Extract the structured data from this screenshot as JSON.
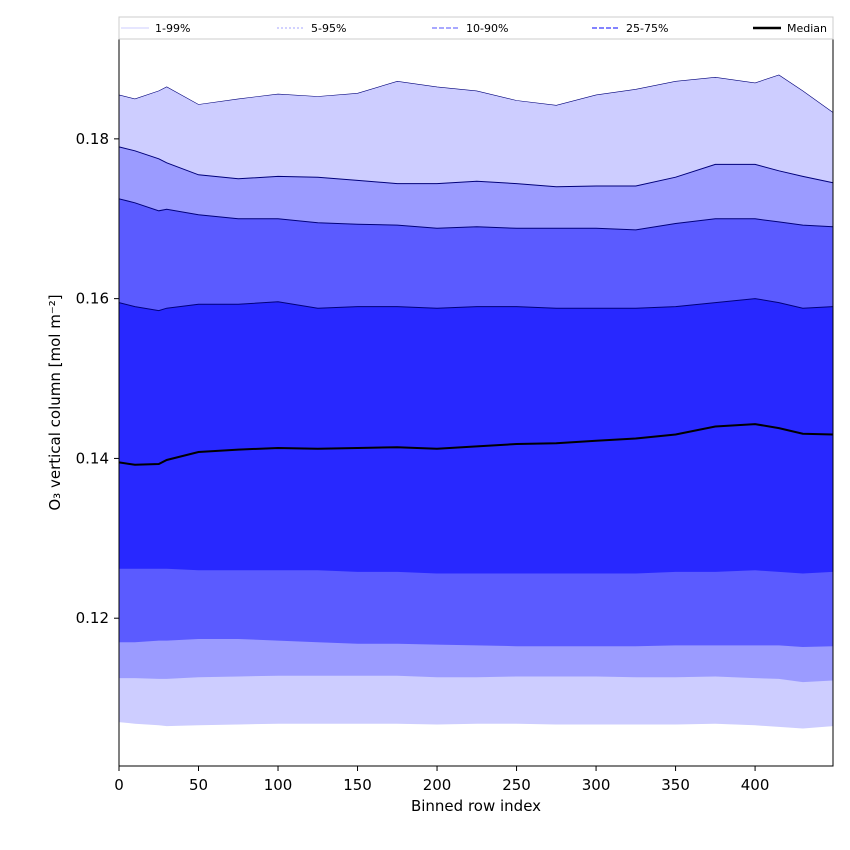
{
  "chart_data": {
    "type": "area",
    "xlabel": "Binned row index",
    "ylabel": "O₃ vertical column [mol m⁻²]",
    "xlim": [
      0,
      449
    ],
    "ylim": [
      0.1015,
      0.1925
    ],
    "xticks": [
      0,
      50,
      100,
      150,
      200,
      250,
      300,
      350,
      400
    ],
    "yticks": [
      0.12,
      0.14,
      0.16,
      0.18
    ],
    "ytick_labels": [
      "0.12",
      "0.14",
      "0.16",
      "0.18"
    ],
    "grid": false,
    "legend_position": "top",
    "legend": [
      {
        "label": "1-99%",
        "color": "#cdcdff",
        "style": "solid-thin"
      },
      {
        "label": "5-95%",
        "color": "#a5a5ff",
        "style": "dotted"
      },
      {
        "label": "10-90%",
        "color": "#8c8cff",
        "style": "dashed"
      },
      {
        "label": "25-75%",
        "color": "#5a5aff",
        "style": "dashed"
      },
      {
        "label": "Median",
        "color": "#000000",
        "style": "solid-thick"
      }
    ],
    "x": [
      0,
      10,
      25,
      30,
      50,
      75,
      100,
      125,
      150,
      175,
      200,
      225,
      250,
      275,
      300,
      325,
      350,
      375,
      400,
      415,
      430,
      449
    ],
    "bands": [
      {
        "name": "1-99%",
        "color": "#cdcdff",
        "upper": [
          0.1855,
          0.185,
          0.186,
          0.1865,
          0.1843,
          0.185,
          0.1856,
          0.1853,
          0.1857,
          0.1872,
          0.1865,
          0.186,
          0.1848,
          0.1842,
          0.1855,
          0.1862,
          0.1872,
          0.1877,
          0.187,
          0.188,
          0.186,
          0.1833
        ],
        "lower": [
          0.107,
          0.1068,
          0.1066,
          0.1065,
          0.1066,
          0.1067,
          0.1068,
          0.1068,
          0.1068,
          0.1068,
          0.1067,
          0.1068,
          0.1068,
          0.1067,
          0.1067,
          0.1067,
          0.1067,
          0.1068,
          0.1066,
          0.1064,
          0.1062,
          0.1065
        ]
      },
      {
        "name": "5-95%",
        "color": "#9b9bff",
        "upper": [
          0.179,
          0.1785,
          0.1775,
          0.177,
          0.1755,
          0.175,
          0.1753,
          0.1752,
          0.1748,
          0.1744,
          0.1744,
          0.1747,
          0.1744,
          0.174,
          0.1741,
          0.1741,
          0.1752,
          0.1768,
          0.1768,
          0.176,
          0.1753,
          0.1745
        ],
        "lower": [
          0.1125,
          0.1125,
          0.1124,
          0.1124,
          0.1126,
          0.1127,
          0.1128,
          0.1128,
          0.1128,
          0.1128,
          0.1126,
          0.1126,
          0.1127,
          0.1127,
          0.1127,
          0.1126,
          0.1126,
          0.1127,
          0.1125,
          0.1124,
          0.112,
          0.1122
        ]
      },
      {
        "name": "10-90%",
        "color": "#5b5bff",
        "upper": [
          0.1725,
          0.172,
          0.171,
          0.1712,
          0.1705,
          0.17,
          0.17,
          0.1695,
          0.1693,
          0.1692,
          0.1688,
          0.169,
          0.1688,
          0.1688,
          0.1688,
          0.1686,
          0.1694,
          0.17,
          0.17,
          0.1696,
          0.1692,
          0.169
        ],
        "lower": [
          0.117,
          0.117,
          0.1172,
          0.1172,
          0.1174,
          0.1174,
          0.1172,
          0.117,
          0.1168,
          0.1168,
          0.1167,
          0.1166,
          0.1165,
          0.1165,
          0.1165,
          0.1165,
          0.1166,
          0.1166,
          0.1166,
          0.1166,
          0.1164,
          0.1165
        ]
      },
      {
        "name": "25-75%",
        "color": "#2828ff",
        "upper": [
          0.1595,
          0.159,
          0.1585,
          0.1588,
          0.1593,
          0.1593,
          0.1596,
          0.1588,
          0.159,
          0.159,
          0.1588,
          0.159,
          0.159,
          0.1588,
          0.1588,
          0.1588,
          0.159,
          0.1595,
          0.16,
          0.1595,
          0.1588,
          0.159
        ],
        "lower": [
          0.1262,
          0.1262,
          0.1262,
          0.1262,
          0.126,
          0.126,
          0.126,
          0.126,
          0.1258,
          0.1258,
          0.1256,
          0.1256,
          0.1256,
          0.1256,
          0.1256,
          0.1256,
          0.1258,
          0.1258,
          0.126,
          0.1258,
          0.1256,
          0.1258
        ]
      }
    ],
    "median": {
      "name": "Median",
      "color": "#000000",
      "values": [
        0.1395,
        0.1392,
        0.1393,
        0.1398,
        0.1408,
        0.1411,
        0.1413,
        0.1412,
        0.1413,
        0.1414,
        0.1412,
        0.1415,
        0.1418,
        0.1419,
        0.1422,
        0.1425,
        0.143,
        0.144,
        0.1443,
        0.1438,
        0.1431,
        0.143
      ]
    }
  }
}
